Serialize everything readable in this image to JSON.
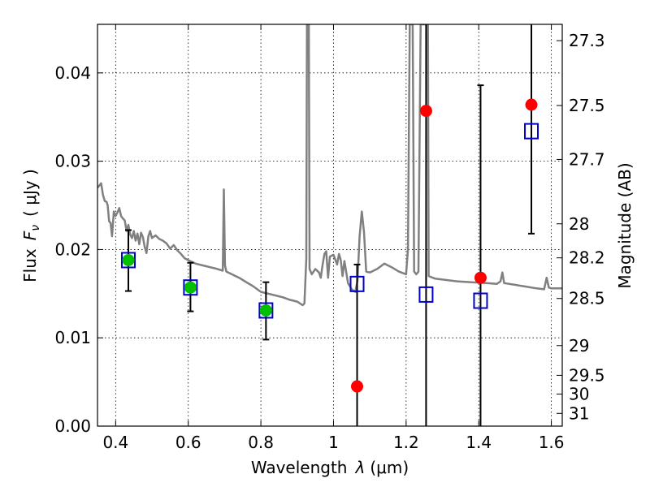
{
  "chart_data": {
    "type": "scatter",
    "xlabel_prefix": "Wavelength",
    "xlabel_symbol": "λ",
    "xlabel_unit": "(μm)",
    "ylabel_prefix": "Flux",
    "ylabel_symbol": "F",
    "ylabel_sub": "ν",
    "ylabel_unit": "( μJy )",
    "y2label": "Magnitude (AB)",
    "xlim": [
      0.35,
      1.63
    ],
    "ylim": [
      0.0,
      0.0455
    ],
    "xticks": [
      0.4,
      0.6,
      0.8,
      1.0,
      1.2,
      1.4,
      1.6
    ],
    "xtick_labels": [
      "0.4",
      "0.6",
      "0.8",
      "1",
      "1.2",
      "1.4",
      "1.6"
    ],
    "yticks": [
      0.0,
      0.01,
      0.02,
      0.03,
      0.04
    ],
    "ytick_labels": [
      "0.00",
      "0.01",
      "0.02",
      "0.03",
      "0.04"
    ],
    "mag_ticks": [
      27.3,
      27.5,
      27.7,
      28,
      28.2,
      28.5,
      29,
      29.5,
      30,
      31
    ],
    "mag_tick_labels": [
      "27.3",
      "27.5",
      "27.7",
      "28",
      "28.2",
      "28.5",
      "29",
      "29.5",
      "30",
      "31"
    ],
    "grid": true,
    "observed_optical": {
      "color": "#00c000",
      "x": [
        0.435,
        0.606,
        0.814
      ],
      "y": [
        0.0188,
        0.0157,
        0.0131
      ],
      "err_low": [
        0.0035,
        0.0027,
        0.0033
      ],
      "err_high": [
        0.0034,
        0.0028,
        0.0032
      ]
    },
    "observed_nir": {
      "color": "#ff0000",
      "x": [
        1.065,
        1.255,
        1.405,
        1.545
      ],
      "y": [
        0.0045,
        0.0357,
        0.0168,
        0.0364
      ],
      "err_low": [
        0.0045,
        0.0357,
        0.0168,
        0.0146
      ],
      "err_high": [
        0.0138,
        0.0455,
        0.0218,
        0.0455
      ]
    },
    "model_photometry": {
      "color": "#0000cc",
      "x": [
        0.435,
        0.606,
        0.814,
        1.065,
        1.255,
        1.405,
        1.545
      ],
      "y": [
        0.0188,
        0.0157,
        0.0131,
        0.0161,
        0.0149,
        0.0142,
        0.0334
      ]
    },
    "model_spectrum": {
      "color": "#808080",
      "points": [
        [
          0.35,
          0.027
        ],
        [
          0.36,
          0.0275
        ],
        [
          0.365,
          0.0262
        ],
        [
          0.37,
          0.0255
        ],
        [
          0.375,
          0.0254
        ],
        [
          0.378,
          0.025
        ],
        [
          0.382,
          0.0232
        ],
        [
          0.386,
          0.023
        ],
        [
          0.39,
          0.0215
        ],
        [
          0.395,
          0.0243
        ],
        [
          0.4,
          0.0238
        ],
        [
          0.405,
          0.0242
        ],
        [
          0.41,
          0.0247
        ],
        [
          0.415,
          0.0238
        ],
        [
          0.42,
          0.0235
        ],
        [
          0.425,
          0.0233
        ],
        [
          0.43,
          0.0221
        ],
        [
          0.435,
          0.0228
        ],
        [
          0.44,
          0.0217
        ],
        [
          0.445,
          0.0213
        ],
        [
          0.45,
          0.0221
        ],
        [
          0.455,
          0.021
        ],
        [
          0.46,
          0.0218
        ],
        [
          0.465,
          0.0206
        ],
        [
          0.47,
          0.0219
        ],
        [
          0.475,
          0.0214
        ],
        [
          0.48,
          0.0203
        ],
        [
          0.485,
          0.0196
        ],
        [
          0.49,
          0.0215
        ],
        [
          0.495,
          0.0221
        ],
        [
          0.5,
          0.0213
        ],
        [
          0.51,
          0.0216
        ],
        [
          0.52,
          0.0212
        ],
        [
          0.53,
          0.021
        ],
        [
          0.54,
          0.0207
        ],
        [
          0.55,
          0.0201
        ],
        [
          0.56,
          0.0205
        ],
        [
          0.57,
          0.0199
        ],
        [
          0.58,
          0.0195
        ],
        [
          0.59,
          0.019
        ],
        [
          0.6,
          0.0188
        ],
        [
          0.62,
          0.0184
        ],
        [
          0.64,
          0.0182
        ],
        [
          0.66,
          0.018
        ],
        [
          0.68,
          0.0178
        ],
        [
          0.695,
          0.0176
        ],
        [
          0.698,
          0.0268
        ],
        [
          0.701,
          0.0182
        ],
        [
          0.705,
          0.0175
        ],
        [
          0.72,
          0.0172
        ],
        [
          0.74,
          0.0168
        ],
        [
          0.76,
          0.0163
        ],
        [
          0.78,
          0.0158
        ],
        [
          0.8,
          0.0152
        ],
        [
          0.82,
          0.015
        ],
        [
          0.84,
          0.0148
        ],
        [
          0.86,
          0.0146
        ],
        [
          0.88,
          0.0143
        ],
        [
          0.9,
          0.0141
        ],
        [
          0.915,
          0.0137
        ],
        [
          0.92,
          0.0139
        ],
        [
          0.925,
          0.019
        ],
        [
          0.927,
          0.0455
        ],
        [
          0.932,
          0.0455
        ],
        [
          0.934,
          0.0178
        ],
        [
          0.94,
          0.0172
        ],
        [
          0.95,
          0.0178
        ],
        [
          0.96,
          0.0174
        ],
        [
          0.965,
          0.0168
        ],
        [
          0.97,
          0.0183
        ],
        [
          0.975,
          0.0195
        ],
        [
          0.98,
          0.0198
        ],
        [
          0.985,
          0.0168
        ],
        [
          0.99,
          0.0192
        ],
        [
          1.0,
          0.0194
        ],
        [
          1.01,
          0.0183
        ],
        [
          1.015,
          0.0195
        ],
        [
          1.02,
          0.0188
        ],
        [
          1.025,
          0.017
        ],
        [
          1.03,
          0.0187
        ],
        [
          1.04,
          0.0162
        ],
        [
          1.05,
          0.0155
        ],
        [
          1.06,
          0.0152
        ],
        [
          1.066,
          0.0165
        ],
        [
          1.072,
          0.0215
        ],
        [
          1.078,
          0.0243
        ],
        [
          1.084,
          0.022
        ],
        [
          1.09,
          0.0175
        ],
        [
          1.1,
          0.0174
        ],
        [
          1.12,
          0.0178
        ],
        [
          1.13,
          0.0181
        ],
        [
          1.14,
          0.0184
        ],
        [
          1.16,
          0.018
        ],
        [
          1.18,
          0.0175
        ],
        [
          1.2,
          0.0172
        ],
        [
          1.205,
          0.02
        ],
        [
          1.21,
          0.0455
        ],
        [
          1.218,
          0.0455
        ],
        [
          1.222,
          0.0175
        ],
        [
          1.228,
          0.0172
        ],
        [
          1.234,
          0.0175
        ],
        [
          1.24,
          0.0455
        ],
        [
          1.26,
          0.0455
        ],
        [
          1.262,
          0.017
        ],
        [
          1.28,
          0.0167
        ],
        [
          1.3,
          0.0166
        ],
        [
          1.34,
          0.0164
        ],
        [
          1.38,
          0.0163
        ],
        [
          1.42,
          0.0162
        ],
        [
          1.45,
          0.0161
        ],
        [
          1.46,
          0.0164
        ],
        [
          1.465,
          0.0174
        ],
        [
          1.47,
          0.0162
        ],
        [
          1.5,
          0.016
        ],
        [
          1.53,
          0.0158
        ],
        [
          1.56,
          0.0156
        ],
        [
          1.58,
          0.0155
        ],
        [
          1.587,
          0.0168
        ],
        [
          1.593,
          0.0157
        ],
        [
          1.6,
          0.0156
        ],
        [
          1.63,
          0.0156
        ]
      ]
    }
  }
}
